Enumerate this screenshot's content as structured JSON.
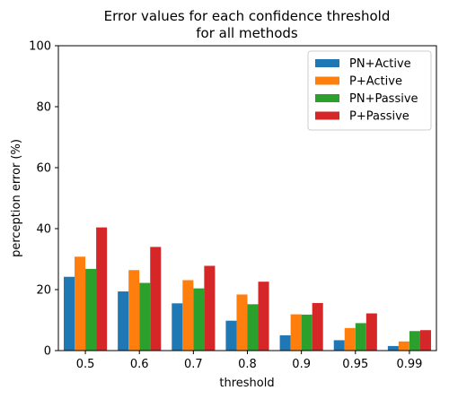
{
  "chart_data": {
    "type": "bar",
    "title": [
      "Error values for each confidence threshold",
      "for all methods"
    ],
    "xlabel": "threshold",
    "ylabel": "perception error (%)",
    "ylim": [
      0,
      100
    ],
    "yticks": [
      0,
      20,
      40,
      60,
      80,
      100
    ],
    "categories": [
      "0.5",
      "0.6",
      "0.7",
      "0.8",
      "0.9",
      "0.95",
      "0.99"
    ],
    "legend_position": "top-right",
    "series": [
      {
        "name": "PN+Active",
        "color": "#1f77b4",
        "values": [
          24.2,
          19.4,
          15.5,
          9.8,
          5.0,
          3.4,
          1.5
        ]
      },
      {
        "name": "P+Active",
        "color": "#ff7f0e",
        "values": [
          30.8,
          26.4,
          23.1,
          18.4,
          11.9,
          7.4,
          3.0
        ]
      },
      {
        "name": "PN+Passive",
        "color": "#2ca02c",
        "values": [
          26.8,
          22.2,
          20.4,
          15.2,
          11.8,
          9.0,
          6.4
        ]
      },
      {
        "name": "P+Passive",
        "color": "#d62728",
        "values": [
          40.4,
          34.0,
          27.8,
          22.6,
          15.6,
          12.2,
          6.7
        ]
      }
    ]
  }
}
